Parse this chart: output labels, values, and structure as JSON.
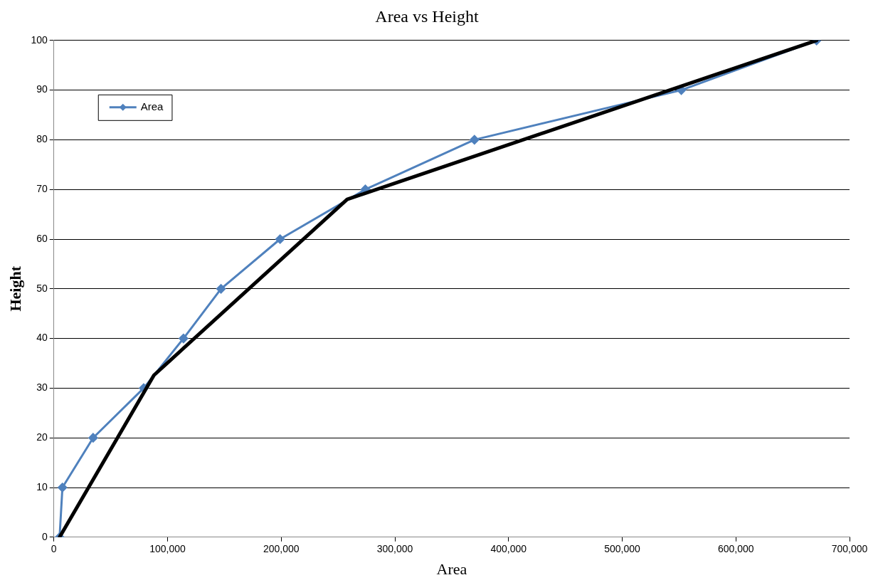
{
  "chart_data": {
    "type": "line",
    "title": "Area vs Height",
    "xlabel": "Area",
    "ylabel": "Height",
    "xlim": [
      0,
      700000
    ],
    "ylim": [
      0,
      100
    ],
    "xticks": [
      0,
      {
        "value": 100000,
        "label": "100,000"
      },
      {
        "value": 200000,
        "label": "200,000"
      },
      {
        "value": 300000,
        "label": "300,000"
      },
      {
        "value": 400000,
        "label": "400,000"
      },
      {
        "value": 500000,
        "label": "500,000"
      },
      {
        "value": 600000,
        "label": "600,000"
      },
      {
        "value": 700000,
        "label": "700,000"
      }
    ],
    "yticks": [
      0,
      10,
      20,
      30,
      40,
      50,
      60,
      70,
      80,
      90,
      100
    ],
    "grid": "y",
    "legend": "top left",
    "series": [
      {
        "name": "Area",
        "type": "line",
        "color": "#4f81bd",
        "marker": "diamond",
        "x": [
          5000,
          7500,
          34500,
          79000,
          114000,
          147000,
          199000,
          274000,
          370000,
          552000,
          671000
        ],
        "values": [
          0,
          10,
          20,
          30,
          40,
          50,
          60,
          70,
          80,
          90,
          100
        ]
      },
      {
        "type": "line",
        "color": "#000000",
        "marker": "none",
        "x": [
          5000,
          88000,
          258000,
          671000
        ],
        "values": [
          0,
          32.6,
          68,
          100
        ]
      }
    ]
  }
}
